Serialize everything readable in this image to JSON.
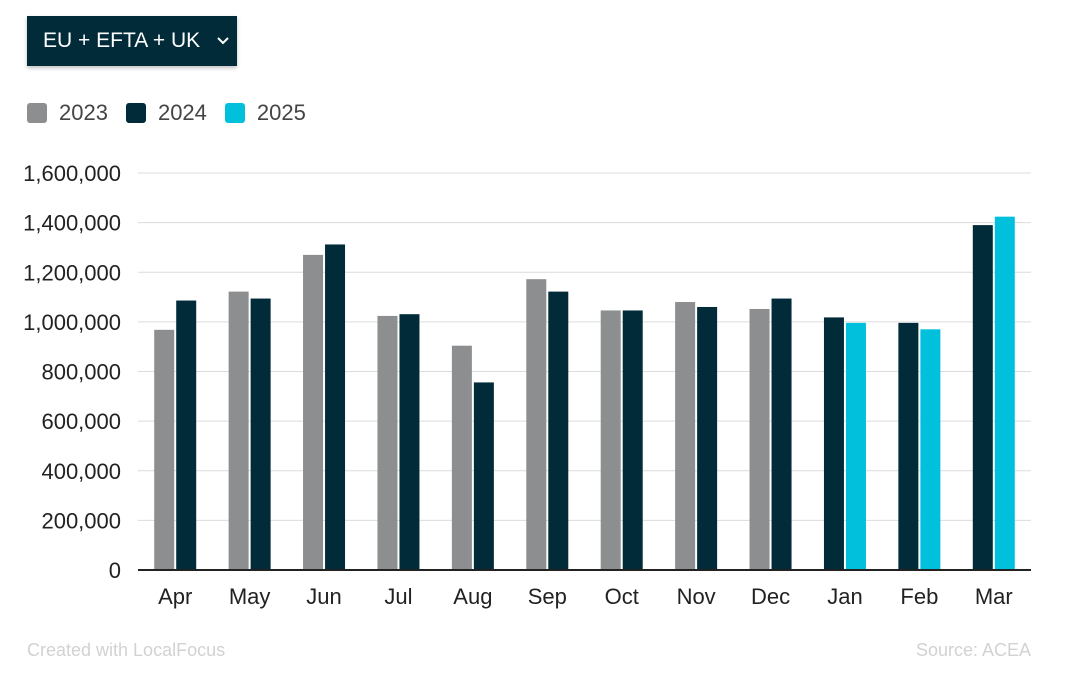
{
  "selector": {
    "label": "EU + EFTA + UK",
    "icon": "chevron-down-icon"
  },
  "footer": {
    "credit": "Created with LocalFocus",
    "source": "Source:  ACEA"
  },
  "chart_data": {
    "type": "bar",
    "categories": [
      "Apr",
      "May",
      "Jun",
      "Jul",
      "Aug",
      "Sep",
      "Oct",
      "Nov",
      "Dec",
      "Jan",
      "Feb",
      "Mar"
    ],
    "series": [
      {
        "name": "2023",
        "color": "#8c8e8f",
        "values": [
          968000,
          1122000,
          1270000,
          1024000,
          904000,
          1172000,
          1046000,
          1080000,
          1052000,
          null,
          null,
          null
        ]
      },
      {
        "name": "2024",
        "color": "#022b3a",
        "values": [
          1086000,
          1094000,
          1312000,
          1031000,
          756000,
          1122000,
          1046000,
          1060000,
          1094000,
          1018000,
          996000,
          1390000
        ]
      },
      {
        "name": "2025",
        "color": "#00c0dc",
        "values": [
          null,
          null,
          null,
          null,
          null,
          null,
          null,
          null,
          null,
          996000,
          970000,
          1424000
        ]
      }
    ],
    "ylim": [
      0,
      1600000
    ],
    "yticks": [
      0,
      200000,
      400000,
      600000,
      800000,
      1000000,
      1200000,
      1400000,
      1600000
    ],
    "ytick_labels": [
      "0",
      "200,000",
      "400,000",
      "600,000",
      "800,000",
      "1,000,000",
      "1,200,000",
      "1,400,000",
      "1,600,000"
    ],
    "grid": true,
    "legend_position": "top-left"
  }
}
